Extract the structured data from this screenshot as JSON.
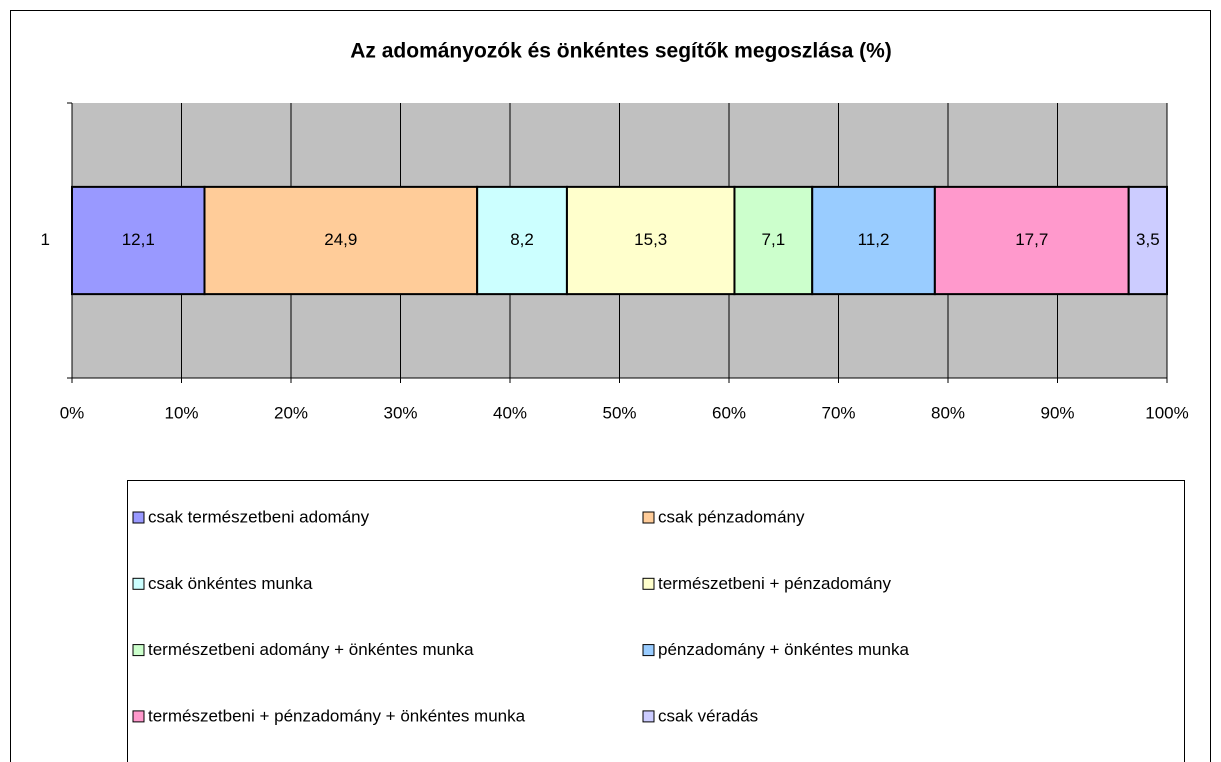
{
  "chart_data": {
    "type": "stacked-bar-horizontal",
    "title": "Az adományozók és önkéntes segítők megoszlása (%)",
    "categories": [
      "1"
    ],
    "series": [
      {
        "name": "csak természetbeni adomány",
        "color": "#9999ff",
        "values": [
          12.1
        ],
        "value_labels": [
          "12,1"
        ]
      },
      {
        "name": "csak pénzadomány",
        "color": "#ffcc99",
        "values": [
          24.9
        ],
        "value_labels": [
          "24,9"
        ]
      },
      {
        "name": "csak önkéntes munka",
        "color": "#ccffff",
        "values": [
          8.2
        ],
        "value_labels": [
          "8,2"
        ]
      },
      {
        "name": "természetbeni + pénzadomány",
        "color": "#ffffcc",
        "values": [
          15.3
        ],
        "value_labels": [
          "15,3"
        ]
      },
      {
        "name": "természetbeni adomány + önkéntes munka",
        "color": "#ccffcc",
        "values": [
          7.1
        ],
        "value_labels": [
          "7,1"
        ]
      },
      {
        "name": "pénzadomány + önkéntes munka",
        "color": "#99ccff",
        "values": [
          11.2
        ],
        "value_labels": [
          "11,2"
        ]
      },
      {
        "name": "természetbeni + pénzadomány + önkéntes munka",
        "color": "#ff99cc",
        "values": [
          17.7
        ],
        "value_labels": [
          "17,7"
        ]
      },
      {
        "name": "csak véradás",
        "color": "#ccccff",
        "values": [
          3.5
        ],
        "value_labels": [
          "3,5"
        ]
      }
    ],
    "xlim": [
      0,
      100
    ],
    "xticks": [
      {
        "value": 0,
        "label": "0%"
      },
      {
        "value": 10,
        "label": "10%"
      },
      {
        "value": 20,
        "label": "20%"
      },
      {
        "value": 30,
        "label": "30%"
      },
      {
        "value": 40,
        "label": "40%"
      },
      {
        "value": 50,
        "label": "50%"
      },
      {
        "value": 60,
        "label": "60%"
      },
      {
        "value": 70,
        "label": "70%"
      },
      {
        "value": 80,
        "label": "80%"
      },
      {
        "value": 90,
        "label": "90%"
      },
      {
        "value": 100,
        "label": "100%"
      }
    ],
    "grid": true,
    "legend": "bottom"
  }
}
